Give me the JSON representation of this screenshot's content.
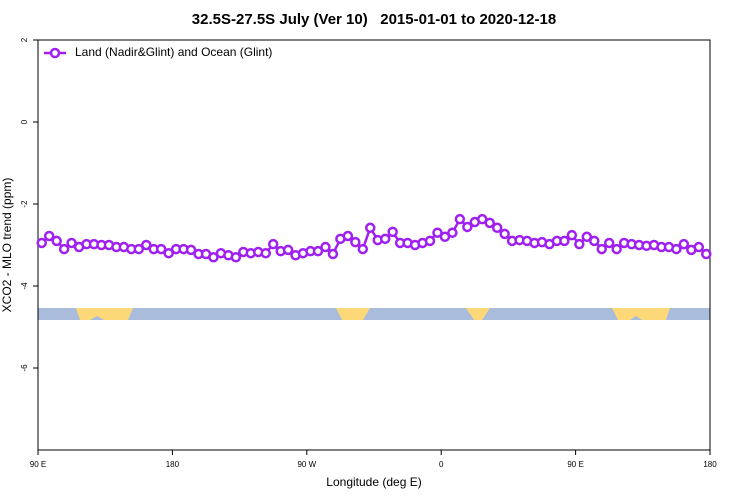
{
  "chart_data": {
    "type": "line",
    "title": "32.5S-27.5S July (Ver 10)   2015-01-01 to 2020-12-18",
    "x_label": "Longitude (deg E)",
    "y_label": "XCO2 - MLO trend (ppm)",
    "xlim": [
      90,
      540
    ],
    "xticks": [
      {
        "value": 90,
        "label": "90 E"
      },
      180,
      {
        "value": 270,
        "label": "90 W"
      },
      {
        "value": 360,
        "label": "0"
      },
      {
        "value": 450,
        "label": "90 E"
      },
      {
        "value": 540,
        "label": "180"
      }
    ],
    "ylim": [
      -8,
      2
    ],
    "yticks": [
      2,
      0,
      -2,
      -4,
      -6
    ],
    "legend": "top-left",
    "x": [
      92.5,
      97.5,
      102.5,
      107.5,
      112.5,
      117.5,
      122.5,
      127.5,
      132.5,
      137.5,
      142.5,
      147.5,
      152.5,
      157.5,
      162.5,
      167.5,
      172.5,
      177.5,
      182.5,
      187.5,
      192.5,
      197.5,
      202.5,
      207.5,
      212.5,
      217.5,
      222.5,
      227.5,
      232.5,
      237.5,
      242.5,
      247.5,
      252.5,
      257.5,
      262.5,
      267.5,
      272.5,
      277.5,
      282.5,
      287.5,
      292.5,
      297.5,
      302.5,
      307.5,
      312.5,
      317.5,
      322.5,
      327.5,
      332.5,
      337.5,
      342.5,
      347.5,
      352.5,
      357.5,
      362.5,
      367.5,
      372.5,
      377.5,
      382.5,
      387.5,
      392.5,
      397.5,
      402.5,
      407.5,
      412.5,
      417.5,
      422.5,
      427.5,
      432.5,
      437.5,
      442.5,
      447.5,
      452.5,
      457.5,
      462.5,
      467.5,
      472.5,
      477.5,
      482.5,
      487.5,
      492.5,
      497.5,
      502.5,
      507.5,
      512.5,
      517.5,
      522.5,
      527.5,
      532.5,
      537.5
    ],
    "series": [
      {
        "name": "Land (Nadir&Glint) and Ocean (Glint)",
        "color": "#a020f0",
        "values": [
          -2.95,
          -2.78,
          -2.9,
          -3.1,
          -2.95,
          -3.05,
          -2.98,
          -2.98,
          -3.0,
          -3.0,
          -3.05,
          -3.05,
          -3.1,
          -3.1,
          -3.0,
          -3.1,
          -3.1,
          -3.2,
          -3.1,
          -3.1,
          -3.12,
          -3.22,
          -3.22,
          -3.3,
          -3.2,
          -3.25,
          -3.3,
          -3.17,
          -3.2,
          -3.17,
          -3.2,
          -2.98,
          -3.15,
          -3.12,
          -3.25,
          -3.2,
          -3.15,
          -3.15,
          -3.05,
          -3.22,
          -2.85,
          -2.78,
          -2.93,
          -3.1,
          -2.58,
          -2.88,
          -2.85,
          -2.68,
          -2.95,
          -2.95,
          -3.0,
          -2.95,
          -2.9,
          -2.7,
          -2.8,
          -2.7,
          -2.37,
          -2.56,
          -2.44,
          -2.37,
          -2.46,
          -2.58,
          -2.73,
          -2.9,
          -2.88,
          -2.9,
          -2.95,
          -2.93,
          -2.98,
          -2.9,
          -2.9,
          -2.76,
          -2.98,
          -2.8,
          -2.9,
          -3.1,
          -2.95,
          -3.1,
          -2.95,
          -2.98,
          -3.0,
          -3.02,
          -3.0,
          -3.05,
          -3.05,
          -3.1,
          -2.98,
          -3.12,
          -3.05,
          -3.22
        ]
      }
    ]
  }
}
